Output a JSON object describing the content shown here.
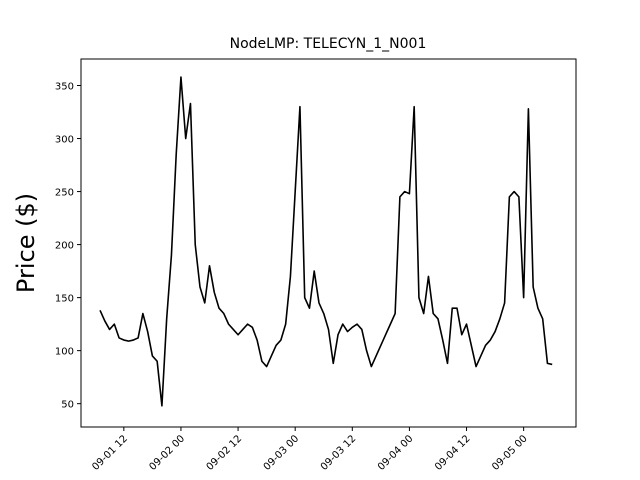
{
  "chart_data": {
    "type": "line",
    "title": "NodeLMP: TELECYN_1_N001",
    "y_label": "Price ($)",
    "x": [
      "09-01 07",
      "09-01 08",
      "09-01 09",
      "09-01 10",
      "09-01 11",
      "09-01 12",
      "09-01 13",
      "09-01 14",
      "09-01 15",
      "09-01 16",
      "09-01 17",
      "09-01 18",
      "09-01 19",
      "09-01 20",
      "09-01 21",
      "09-01 22",
      "09-01 23",
      "09-02 00",
      "09-02 01",
      "09-02 02",
      "09-02 03",
      "09-02 04",
      "09-02 05",
      "09-02 06",
      "09-02 07",
      "09-02 08",
      "09-02 09",
      "09-02 10",
      "09-02 11",
      "09-02 12",
      "09-02 13",
      "09-02 14",
      "09-02 15",
      "09-02 16",
      "09-02 17",
      "09-02 18",
      "09-02 19",
      "09-02 20",
      "09-02 21",
      "09-02 22",
      "09-02 23",
      "09-03 00",
      "09-03 01",
      "09-03 02",
      "09-03 03",
      "09-03 04",
      "09-03 05",
      "09-03 06",
      "09-03 07",
      "09-03 08",
      "09-03 09",
      "09-03 10",
      "09-03 11",
      "09-03 12",
      "09-03 13",
      "09-03 14",
      "09-03 15",
      "09-03 16",
      "09-03 17",
      "09-03 18",
      "09-03 19",
      "09-03 20",
      "09-03 21",
      "09-03 22",
      "09-03 23",
      "09-04 00",
      "09-04 01",
      "09-04 02",
      "09-04 03",
      "09-04 04",
      "09-04 05",
      "09-04 06",
      "09-04 07",
      "09-04 08",
      "09-04 09",
      "09-04 10",
      "09-04 11",
      "09-04 12",
      "09-04 13",
      "09-04 14",
      "09-04 15",
      "09-04 16",
      "09-04 17",
      "09-04 18",
      "09-04 19",
      "09-04 20",
      "09-04 21",
      "09-04 22",
      "09-04 23",
      "09-05 00",
      "09-05 01",
      "09-05 02",
      "09-05 03",
      "09-05 04",
      "09-05 05",
      "09-05 06"
    ],
    "series": [
      {
        "name": "NodeLMP",
        "color": "#000000",
        "values": [
          138,
          128,
          120,
          125,
          112,
          110,
          109,
          110,
          112,
          135,
          118,
          95,
          90,
          48,
          130,
          190,
          285,
          358,
          300,
          333,
          200,
          160,
          145,
          180,
          155,
          140,
          135,
          125,
          120,
          115,
          120,
          125,
          122,
          110,
          90,
          85,
          95,
          105,
          110,
          125,
          170,
          250,
          330,
          150,
          140,
          175,
          145,
          135,
          120,
          88,
          115,
          125,
          118,
          122,
          125,
          120,
          100,
          85,
          95,
          105,
          115,
          125,
          135,
          245,
          250,
          248,
          330,
          150,
          135,
          170,
          135,
          130,
          110,
          88,
          140,
          140,
          115,
          125,
          105,
          85,
          95,
          105,
          110,
          118,
          130,
          145,
          245,
          250,
          245,
          150,
          328,
          160,
          140,
          130,
          88,
          87
        ]
      }
    ],
    "xlim": [
      "09-01 03",
      "09-05 11"
    ],
    "xticks": [
      "09-01 12",
      "09-02 00",
      "09-02 12",
      "09-03 00",
      "09-03 12",
      "09-04 00",
      "09-04 12",
      "09-05 00"
    ],
    "ylim": [
      28,
      375
    ],
    "yticks": [
      50,
      100,
      150,
      200,
      250,
      300,
      350
    ]
  }
}
